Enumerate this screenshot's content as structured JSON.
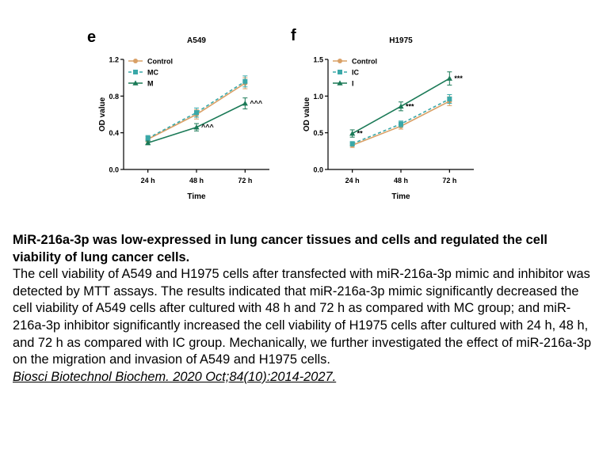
{
  "figure": {
    "panels": [
      {
        "letter": "e"
      },
      {
        "letter": "f"
      }
    ]
  },
  "chart_data": [
    {
      "type": "line",
      "title": "A549",
      "xlabel": "Time",
      "ylabel": "OD value",
      "categories": [
        "24 h",
        "48 h",
        "72 h"
      ],
      "ylim": [
        0.0,
        1.2
      ],
      "yticks": [
        "0.0",
        "0.4",
        "0.8",
        "1.2"
      ],
      "legend_position": "top-left",
      "series": [
        {
          "name": "Control",
          "values": [
            0.33,
            0.6,
            0.94
          ],
          "errors": [
            0.03,
            0.05,
            0.06
          ],
          "color": "#d9a066",
          "marker": "circle",
          "dash": "solid"
        },
        {
          "name": "MC",
          "values": [
            0.34,
            0.62,
            0.96
          ],
          "errors": [
            0.03,
            0.05,
            0.06
          ],
          "color": "#3aa8a8",
          "marker": "square",
          "dash": "dashed"
        },
        {
          "name": "M",
          "values": [
            0.29,
            0.46,
            0.72
          ],
          "errors": [
            0.02,
            0.04,
            0.06
          ],
          "color": "#1b7a57",
          "marker": "triangle",
          "dash": "solid"
        }
      ],
      "annotations": [
        {
          "category": "48 h",
          "text": "^^^"
        },
        {
          "category": "72 h",
          "text": "^^^"
        }
      ]
    },
    {
      "type": "line",
      "title": "H1975",
      "xlabel": "Time",
      "ylabel": "OD value",
      "categories": [
        "24 h",
        "48 h",
        "72 h"
      ],
      "ylim": [
        0.0,
        1.5
      ],
      "yticks": [
        "0.0",
        "0.5",
        "1.0",
        "1.5"
      ],
      "legend_position": "top-left",
      "series": [
        {
          "name": "Control",
          "values": [
            0.33,
            0.59,
            0.93
          ],
          "errors": [
            0.03,
            0.04,
            0.06
          ],
          "color": "#d9a066",
          "marker": "circle",
          "dash": "solid"
        },
        {
          "name": "IC",
          "values": [
            0.35,
            0.62,
            0.96
          ],
          "errors": [
            0.03,
            0.04,
            0.06
          ],
          "color": "#3aa8a8",
          "marker": "square",
          "dash": "dashed"
        },
        {
          "name": "I",
          "values": [
            0.49,
            0.86,
            1.24
          ],
          "errors": [
            0.05,
            0.06,
            0.09
          ],
          "color": "#1b7a57",
          "marker": "triangle",
          "dash": "solid"
        }
      ],
      "annotations": [
        {
          "category": "24 h",
          "text": "**"
        },
        {
          "category": "48 h",
          "text": "***"
        },
        {
          "category": "72 h",
          "text": "***"
        }
      ]
    }
  ],
  "caption": {
    "title": "MiR-216a-3p was low-expressed in lung cancer tissues and cells and regulated the cell viability of lung cancer cells.",
    "body": "The cell viability of A549 and H1975 cells after transfected with miR-216a-3p mimic and inhibitor was detected by MTT assays. The results indicated that miR-216a-3p mimic significantly decreased the cell viability of A549 cells after cultured with 48 h and 72 h as compared with MC group; and miR-216a-3p inhibitor significantly increased the cell viability of H1975 cells after cultured with 24 h, 48 h, and 72 h as compared with IC group. Mechanically, we further investigated the effect of miR-216a-3p on the migration and invasion of A549 and H1975 cells.",
    "citation": "Biosci Biotechnol Biochem. 2020 Oct;84(10):2014-2027."
  }
}
